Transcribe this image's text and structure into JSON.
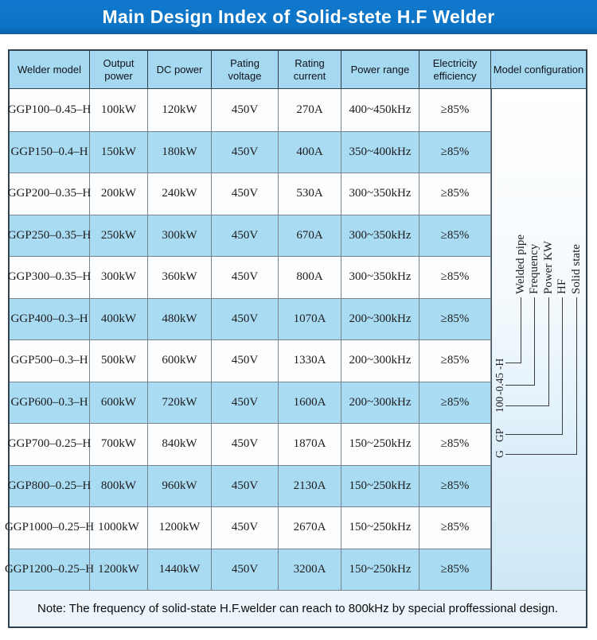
{
  "banner": {
    "title": "Main Design Index of Solid-stete H.F Welder",
    "bg_color": "#0d74c4",
    "text_color": "#ffffff"
  },
  "table": {
    "headers": [
      "Welder model",
      "Output power",
      "DC power",
      "Pating voltage",
      "Rating current",
      "Power range",
      "Electricity efficiency",
      "Model configuration"
    ],
    "rows": [
      [
        "GGP100–0.45–H",
        "100kW",
        "120kW",
        "450V",
        "270A",
        "400~450kHz",
        "≥85%"
      ],
      [
        "GGP150–0.4–H",
        "150kW",
        "180kW",
        "450V",
        "400A",
        "350~400kHz",
        "≥85%"
      ],
      [
        "GGP200–0.35–H",
        "200kW",
        "240kW",
        "450V",
        "530A",
        "300~350kHz",
        "≥85%"
      ],
      [
        "GGP250–0.35–H",
        "250kW",
        "300kW",
        "450V",
        "670A",
        "300~350kHz",
        "≥85%"
      ],
      [
        "GGP300–0.35–H",
        "300kW",
        "360kW",
        "450V",
        "800A",
        "300~350kHz",
        "≥85%"
      ],
      [
        "GGP400–0.3–H",
        "400kW",
        "480kW",
        "450V",
        "1070A",
        "200~300kHz",
        "≥85%"
      ],
      [
        "GGP500–0.3–H",
        "500kW",
        "600kW",
        "450V",
        "1330A",
        "200~300kHz",
        "≥85%"
      ],
      [
        "GGP600–0.3–H",
        "600kW",
        "720kW",
        "450V",
        "1600A",
        "200~300kHz",
        "≥85%"
      ],
      [
        "GGP700–0.25–H",
        "700kW",
        "840kW",
        "450V",
        "1870A",
        "150~250kHz",
        "≥85%"
      ],
      [
        "GGP800–0.25–H",
        "800kW",
        "960kW",
        "450V",
        "2130A",
        "150~250kHz",
        "≥85%"
      ],
      [
        "GGP1000–0.25–H",
        "1000kW",
        "1200kW",
        "450V",
        "2670A",
        "150~250kHz",
        "≥85%"
      ],
      [
        "GGP1200–0.25–H",
        "1200kW",
        "1440kW",
        "450V",
        "3200A",
        "150~250kHz",
        "≥85%"
      ]
    ],
    "colors": {
      "header_bg": "#a5d8f1",
      "row_blue": "#a9dbf3",
      "row_white": "#fcfdfe",
      "note_bg": "#ecf5fb",
      "border_dark": "#32424e",
      "border_inner": "#77848e"
    }
  },
  "model_configuration": {
    "code_parts": [
      {
        "text": "G",
        "label": "Solid state"
      },
      {
        "text": "GP",
        "label": "HF"
      },
      {
        "text": "100",
        "label": "Power KW"
      },
      {
        "text": "-0.45",
        "label": "Frequency"
      },
      {
        "text": "-H",
        "label": "Welded pipe"
      }
    ]
  },
  "note": {
    "text": "Note: The frequency of solid-state H.F.welder can reach to 800kHz by special proffessional design."
  }
}
